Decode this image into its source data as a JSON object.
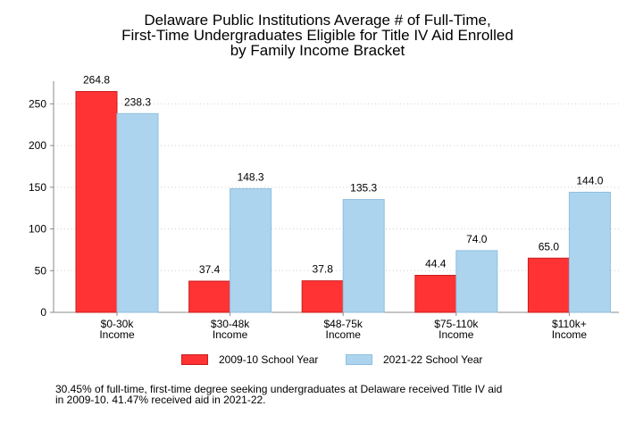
{
  "chart_data": {
    "type": "bar",
    "title_lines": [
      "Delaware Public Institutions Average # of Full-Time,",
      "First-Time Undergraduates Eligible for Title IV Aid Enrolled",
      "by Family Income Bracket"
    ],
    "categories": [
      [
        "$0-30k",
        "Income"
      ],
      [
        "$30-48k",
        "Income"
      ],
      [
        "$48-75k",
        "Income"
      ],
      [
        "$75-110k",
        "Income"
      ],
      [
        "$110k+",
        "Income"
      ]
    ],
    "series": [
      {
        "name": "2009-10 School Year",
        "color": "#ff3333",
        "stroke": "#c81e1e",
        "values": [
          264.8,
          37.4,
          37.8,
          44.4,
          65.0
        ],
        "labels": [
          "264.8",
          "37.4",
          "37.8",
          "44.4",
          "65.0"
        ]
      },
      {
        "name": "2021-22 School Year",
        "color": "#add4ee",
        "stroke": "#8ebfe0",
        "values": [
          238.3,
          148.3,
          135.3,
          74.0,
          144.0
        ],
        "labels": [
          "238.3",
          "148.3",
          "135.3",
          "74.0",
          "144.0"
        ]
      }
    ],
    "ylim": [
      0,
      275
    ],
    "yticks": [
      0,
      50,
      100,
      150,
      200,
      250
    ],
    "grid": true,
    "legend_position": "bottom",
    "xlabel": "",
    "ylabel": ""
  },
  "footnote_lines": [
    "30.45% of full-time, first-time degree seeking undergraduates at Delaware received Title IV aid",
    "in 2009-10. 41.47% received aid in 2021-22."
  ]
}
